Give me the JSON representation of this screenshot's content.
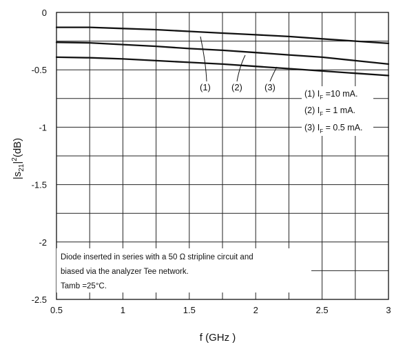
{
  "chart_data": {
    "type": "line",
    "title": "",
    "xlabel": "f  (GHz )",
    "ylabel_main": "|s",
    "ylabel_sub": "21",
    "ylabel_tail": "|",
    "ylabel_sup": "2",
    "ylabel_unit": "(dB)",
    "xlim": [
      0.5,
      3.0
    ],
    "ylim": [
      -2.5,
      0
    ],
    "xticks": [
      0.5,
      1,
      1.5,
      2,
      2.5,
      3
    ],
    "xtick_labels": [
      "0.5",
      "1",
      "1.5",
      "2",
      "2.5",
      "3"
    ],
    "yticks": [
      0,
      -0.5,
      -1,
      -1.5,
      -2,
      -2.5
    ],
    "ytick_labels": [
      "0",
      "-0.5",
      "-1",
      "-1.5",
      "-2",
      "-2.5"
    ],
    "x_minor_step": 0.25,
    "y_minor_step": 0.25,
    "grid": true,
    "series": [
      {
        "label": "(1)",
        "x": [
          0.5,
          0.75,
          1.0,
          1.25,
          1.5,
          1.75,
          2.0,
          2.25,
          2.5,
          2.75,
          3.0
        ],
        "y": [
          -0.13,
          -0.13,
          -0.14,
          -0.15,
          -0.165,
          -0.18,
          -0.195,
          -0.21,
          -0.23,
          -0.25,
          -0.27
        ]
      },
      {
        "label": "(2)",
        "x": [
          0.5,
          0.75,
          1.0,
          1.25,
          1.5,
          1.75,
          2.0,
          2.25,
          2.5,
          2.75,
          3.0
        ],
        "y": [
          -0.26,
          -0.265,
          -0.28,
          -0.295,
          -0.315,
          -0.33,
          -0.35,
          -0.37,
          -0.39,
          -0.42,
          -0.45
        ]
      },
      {
        "label": "(3)",
        "x": [
          0.5,
          0.75,
          1.0,
          1.25,
          1.5,
          1.75,
          2.0,
          2.25,
          2.5,
          2.75,
          3.0
        ],
        "y": [
          -0.39,
          -0.395,
          -0.405,
          -0.42,
          -0.435,
          -0.45,
          -0.47,
          -0.49,
          -0.51,
          -0.53,
          -0.55
        ]
      }
    ],
    "legend": {
      "placement": "upper-right",
      "entries": [
        {
          "prefix": "(1) I",
          "sub": "F",
          "value": " =10 mA."
        },
        {
          "prefix": "(2) I",
          "sub": "F",
          "value": " = 1 mA."
        },
        {
          "prefix": "(3) I",
          "sub": "F",
          "value": " = 0.5 mA."
        }
      ]
    },
    "annotation_lines": [
      "Diode inserted in series with a 50 Ω stripline circuit and",
      "biased via the analyzer Tee network.",
      "Tamb =25°C."
    ]
  }
}
